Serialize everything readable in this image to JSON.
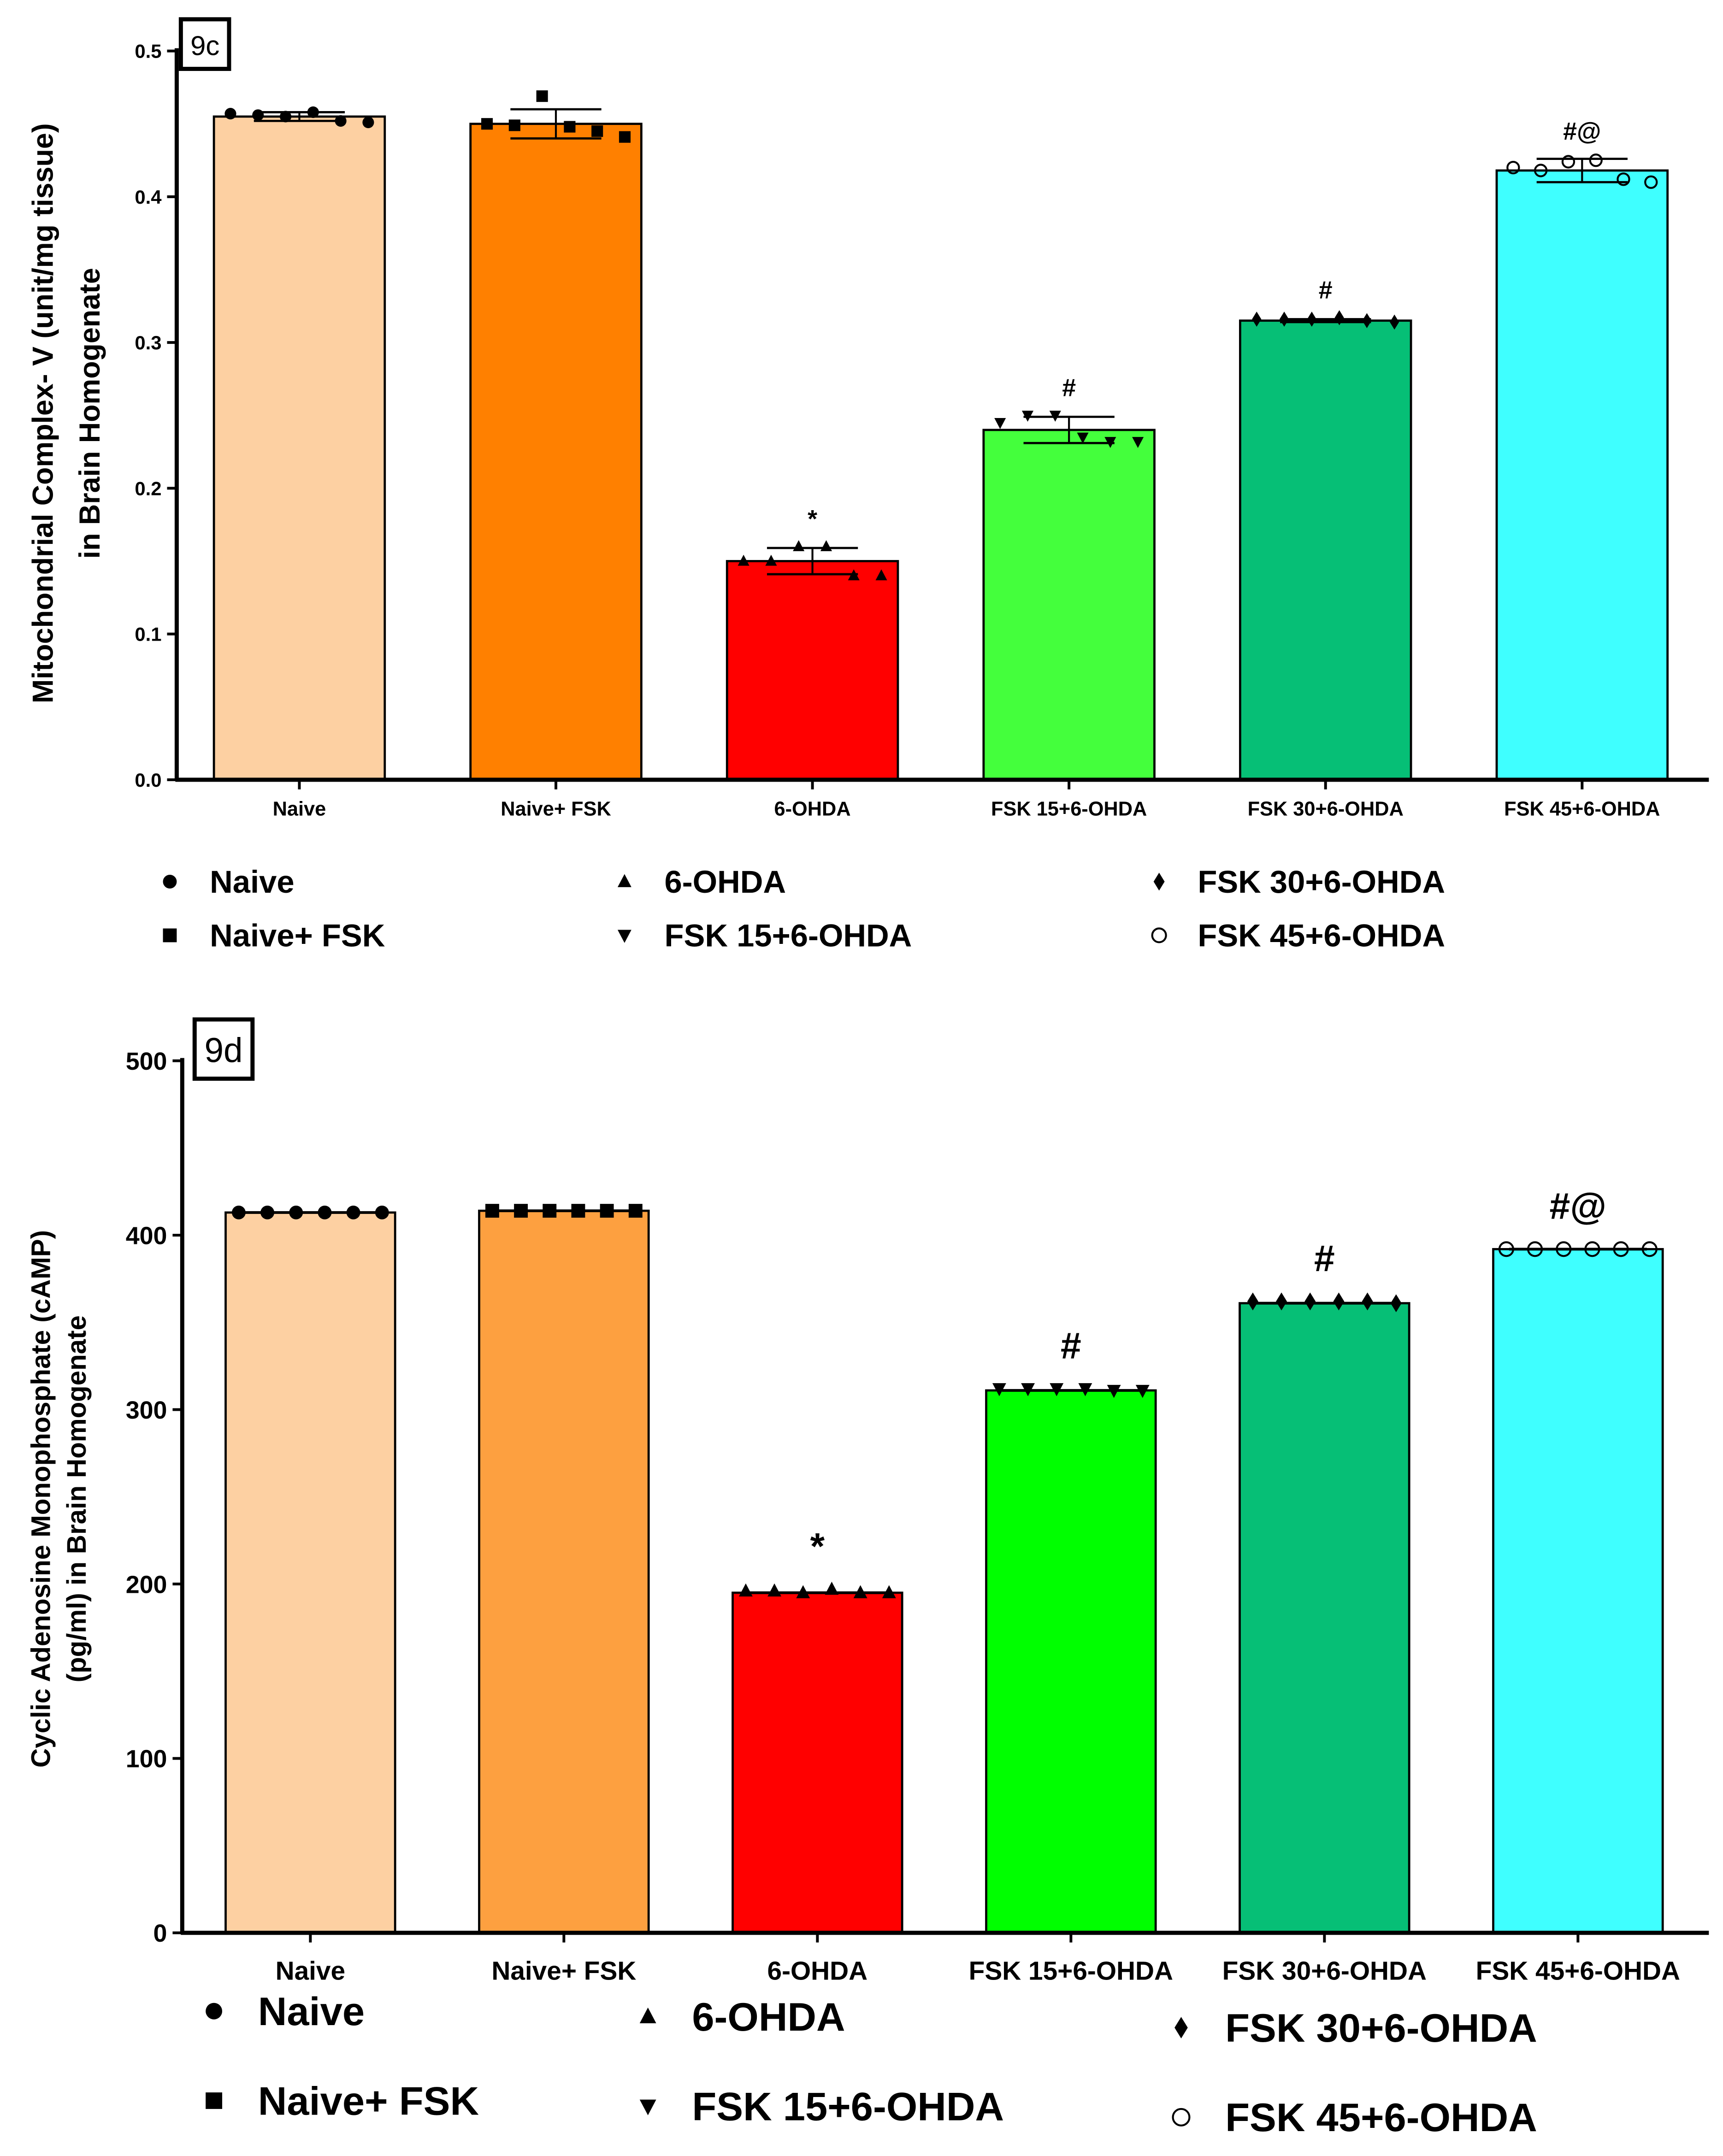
{
  "chart_data": [
    {
      "type": "bar",
      "panel_label": "9c",
      "ylabel_line1": "Mitochondrial Complex- V (unit/mg tissue)",
      "ylabel_line2": "in Brain Homogenate",
      "ylim": [
        0,
        0.5
      ],
      "yticks": [
        "0.0",
        "0.1",
        "0.2",
        "0.3",
        "0.4",
        "0.5"
      ],
      "categories": [
        "Naive",
        "Naive+ FSK",
        "6-OHDA",
        "FSK 15+6-OHDA",
        "FSK 30+6-OHDA",
        "FSK 45+6-OHDA"
      ],
      "values": [
        0.455,
        0.45,
        0.15,
        0.24,
        0.315,
        0.418
      ],
      "errors": [
        0.003,
        0.01,
        0.009,
        0.009,
        0.001,
        0.008
      ],
      "colors": [
        "#FDD0A2",
        "#FF8000",
        "#FF0000",
        "#44FF3C",
        "#06BF76",
        "#3FFFFF"
      ],
      "markers": [
        "circle",
        "square",
        "triangle-up",
        "triangle-down",
        "diamond",
        "open-circle"
      ],
      "points": [
        [
          0.457,
          0.456,
          0.455,
          0.458,
          0.452,
          0.451
        ],
        [
          0.45,
          0.449,
          0.469,
          0.448,
          0.445,
          0.441
        ],
        [
          0.15,
          0.15,
          0.16,
          0.16,
          0.14,
          0.14
        ],
        [
          0.245,
          0.25,
          0.25,
          0.235,
          0.232,
          0.232
        ],
        [
          0.316,
          0.316,
          0.316,
          0.317,
          0.315,
          0.314
        ],
        [
          0.42,
          0.418,
          0.424,
          0.425,
          0.412,
          0.41
        ]
      ],
      "annotations": [
        "",
        "",
        "*",
        "#",
        "#",
        "#@"
      ],
      "legend": [
        "Naive",
        "Naive+ FSK",
        "6-OHDA",
        "FSK 15+6-OHDA",
        "FSK 30+6-OHDA",
        "FSK 45+6-OHDA"
      ],
      "legend_placement": "bottom"
    },
    {
      "type": "bar",
      "panel_label": "9d",
      "ylabel_line1": "Cyclic Adenosine Monophosphate (cAMP)",
      "ylabel_line2": "(pg/ml) in Brain Homogenate",
      "ylim": [
        0,
        500
      ],
      "yticks": [
        "0",
        "100",
        "200",
        "300",
        "400",
        "500"
      ],
      "categories": [
        "Naive",
        "Naive+ FSK",
        "6-OHDA",
        "FSK 15+6-OHDA",
        "FSK 30+6-OHDA",
        "FSK 45+6-OHDA"
      ],
      "values": [
        413,
        414,
        195,
        311,
        361,
        392
      ],
      "errors": [
        0,
        0,
        0,
        0,
        0,
        0
      ],
      "colors": [
        "#FDD0A2",
        "#FDA040",
        "#FF0000",
        "#00FF00",
        "#06BF76",
        "#3FFFFF"
      ],
      "markers": [
        "circle",
        "square",
        "triangle-up",
        "triangle-down",
        "diamond",
        "open-circle"
      ],
      "points": [
        [
          413,
          413,
          413,
          413,
          413,
          413
        ],
        [
          414,
          414,
          414,
          414,
          414,
          414
        ],
        [
          196,
          196,
          195,
          197,
          195,
          195
        ],
        [
          312,
          312,
          312,
          312,
          311,
          311
        ],
        [
          362,
          362,
          362,
          362,
          362,
          361
        ],
        [
          392,
          392,
          392,
          392,
          392,
          392
        ]
      ],
      "annotations": [
        "",
        "",
        "*",
        "#",
        "#",
        "#@"
      ],
      "legend": [
        "Naive",
        "Naive+ FSK",
        "6-OHDA",
        "FSK 15+6-OHDA",
        "FSK 30+6-OHDA",
        "FSK 45+6-OHDA"
      ],
      "legend_placement": "bottom"
    }
  ]
}
